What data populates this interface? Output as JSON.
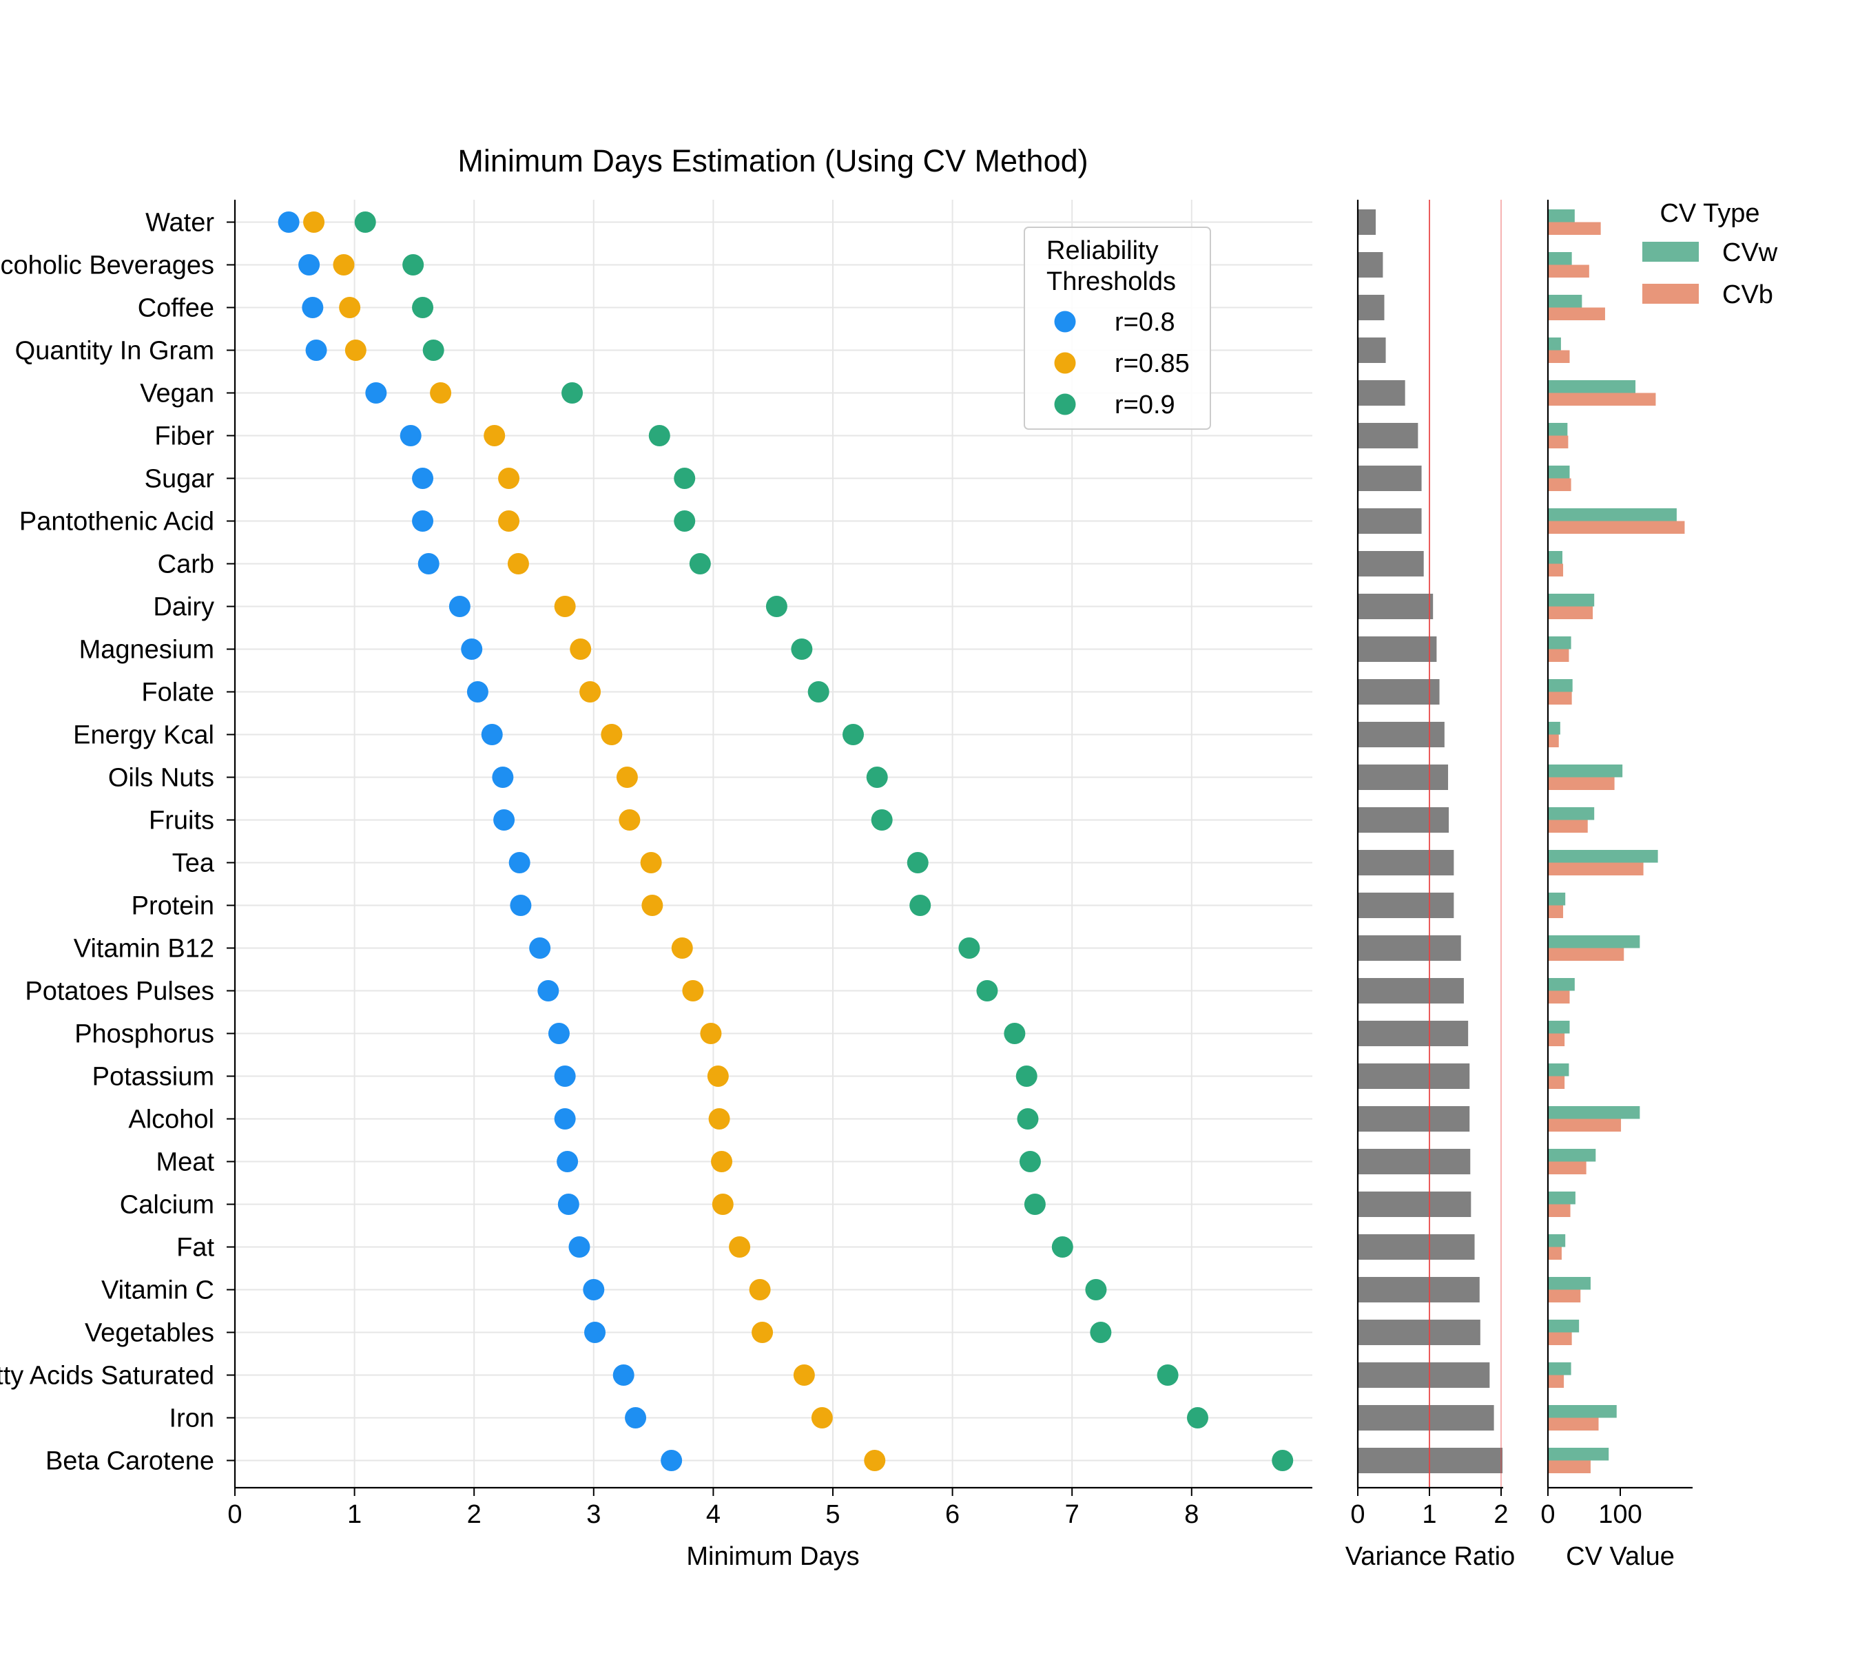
{
  "chart_data": [
    {
      "type": "scatter",
      "title": "Minimum Days Estimation (Using CV Method)",
      "xlabel": "Minimum Days",
      "ylabel": "",
      "xlim": [
        0,
        9
      ],
      "xticks": [
        "0",
        "1",
        "2",
        "3",
        "4",
        "5",
        "6",
        "7",
        "8"
      ],
      "grid": true,
      "categories": [
        "Water",
        "Non-Alcoholic Beverages",
        "Coffee",
        "Quantity In Gram",
        "Vegan",
        "Fiber",
        "Sugar",
        "Pantothenic Acid",
        "Carb",
        "Dairy",
        "Magnesium",
        "Folate",
        "Energy Kcal",
        "Oils Nuts",
        "Fruits",
        "Tea",
        "Protein",
        "Vitamin B12",
        "Potatoes Pulses",
        "Phosphorus",
        "Potassium",
        "Alcohol",
        "Meat",
        "Calcium",
        "Fat",
        "Vitamin C",
        "Vegetables",
        "Fatty Acids Saturated",
        "Iron",
        "Beta Carotene"
      ],
      "legend": {
        "title_line1": "Reliability",
        "title_line2": "Thresholds",
        "position": "upper-right"
      },
      "series": [
        {
          "name": "r=0.8",
          "color": "#1e8ff2",
          "values": [
            0.45,
            0.62,
            0.65,
            0.68,
            1.18,
            1.47,
            1.57,
            1.57,
            1.62,
            1.88,
            1.98,
            2.03,
            2.15,
            2.24,
            2.25,
            2.38,
            2.39,
            2.55,
            2.62,
            2.71,
            2.76,
            2.76,
            2.78,
            2.79,
            2.88,
            3.0,
            3.01,
            3.25,
            3.35,
            3.65
          ]
        },
        {
          "name": "r=0.85",
          "color": "#f0a80c",
          "values": [
            0.66,
            0.91,
            0.96,
            1.01,
            1.72,
            2.17,
            2.29,
            2.29,
            2.37,
            2.76,
            2.89,
            2.97,
            3.15,
            3.28,
            3.3,
            3.48,
            3.49,
            3.74,
            3.83,
            3.98,
            4.04,
            4.05,
            4.07,
            4.08,
            4.22,
            4.39,
            4.41,
            4.76,
            4.91,
            5.35
          ]
        },
        {
          "name": "r=0.9",
          "color": "#2aa87a",
          "values": [
            1.09,
            1.49,
            1.57,
            1.66,
            2.82,
            3.55,
            3.76,
            3.76,
            3.89,
            4.53,
            4.74,
            4.88,
            5.17,
            5.37,
            5.41,
            5.71,
            5.73,
            6.14,
            6.29,
            6.52,
            6.62,
            6.63,
            6.65,
            6.69,
            6.92,
            7.2,
            7.24,
            7.8,
            8.05,
            8.76
          ]
        }
      ]
    },
    {
      "type": "bar",
      "orientation": "horizontal",
      "xlabel": "Variance Ratio",
      "xlim": [
        0,
        2.02
      ],
      "xticks": [
        "0",
        "1",
        "2"
      ],
      "reference_lines": [
        1,
        2
      ],
      "color": "#808080",
      "values": [
        0.25,
        0.35,
        0.37,
        0.39,
        0.66,
        0.84,
        0.89,
        0.89,
        0.92,
        1.05,
        1.1,
        1.14,
        1.21,
        1.26,
        1.27,
        1.34,
        1.34,
        1.44,
        1.48,
        1.54,
        1.56,
        1.56,
        1.57,
        1.58,
        1.63,
        1.7,
        1.71,
        1.84,
        1.9,
        2.02
      ]
    },
    {
      "type": "bar",
      "orientation": "horizontal",
      "xlabel": "CV Value",
      "xlim": [
        0,
        200
      ],
      "xticks": [
        "0",
        "100"
      ],
      "legend": {
        "title": "CV Type",
        "position": "upper-right"
      },
      "series": [
        {
          "name": "CVw",
          "color": "#6ab69b",
          "values": [
            37,
            33,
            47,
            18,
            121,
            27,
            30,
            178,
            20,
            64,
            32,
            34,
            17,
            103,
            64,
            152,
            24,
            127,
            37,
            30,
            29,
            127,
            66,
            38,
            24,
            59,
            43,
            32,
            95,
            84
          ]
        },
        {
          "name": "CVb",
          "color": "#e8967a",
          "values": [
            73,
            57,
            79,
            30,
            149,
            28,
            32,
            189,
            21,
            62,
            29,
            33,
            15,
            92,
            55,
            132,
            21,
            105,
            30,
            23,
            23,
            101,
            53,
            31,
            19,
            45,
            33,
            22,
            70,
            59
          ]
        }
      ]
    }
  ]
}
